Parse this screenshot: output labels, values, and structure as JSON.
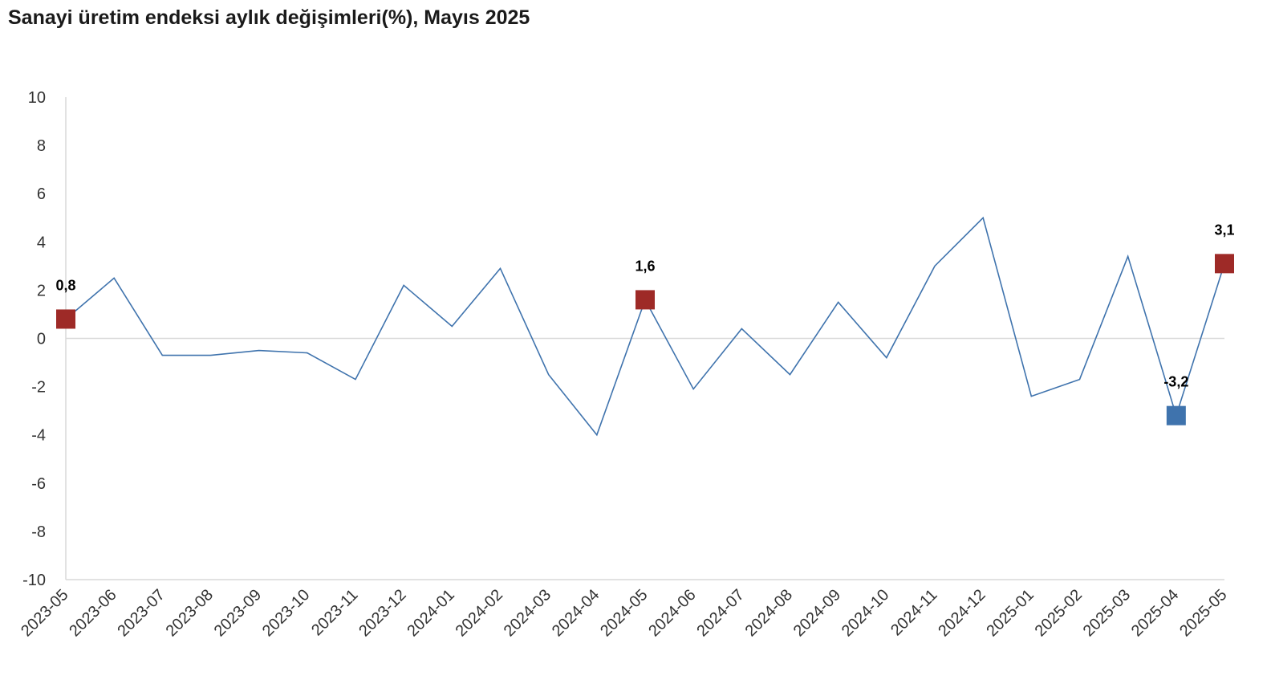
{
  "chart_data": {
    "type": "line",
    "title": "Sanayi üretim endeksi aylık değişimleri(%), Mayıs 2025",
    "xlabel": "",
    "ylabel": "",
    "categories": [
      "2023-05",
      "2023-06",
      "2023-07",
      "2023-08",
      "2023-09",
      "2023-10",
      "2023-11",
      "2023-12",
      "2024-01",
      "2024-02",
      "2024-03",
      "2024-04",
      "2024-05",
      "2024-06",
      "2024-07",
      "2024-08",
      "2024-09",
      "2024-10",
      "2024-11",
      "2024-12",
      "2025-01",
      "2025-02",
      "2025-03",
      "2025-04",
      "2025-05"
    ],
    "series": [
      {
        "values": [
          0.8,
          2.5,
          -0.7,
          -0.7,
          -0.5,
          -0.6,
          -1.7,
          2.2,
          0.5,
          2.9,
          -1.5,
          -4.0,
          1.6,
          -2.1,
          0.4,
          -1.5,
          1.5,
          -0.8,
          3.0,
          5.0,
          -2.4,
          -1.7,
          3.4,
          -3.2,
          3.1
        ],
        "color": "#3f73ad"
      }
    ],
    "ylim": [
      -10,
      10
    ],
    "yticks": [
      "10",
      "8",
      "6",
      "4",
      "2",
      "0",
      "-2",
      "-4",
      "-6",
      "-8",
      "-10"
    ],
    "grid": false,
    "zero_line": true,
    "legend": "none",
    "highlighted_points": [
      {
        "category": "2023-05",
        "value": 0.8,
        "label": "0,8",
        "color": "#9e2a27"
      },
      {
        "category": "2024-05",
        "value": 1.6,
        "label": "1,6",
        "color": "#9e2a27"
      },
      {
        "category": "2025-04",
        "value": -3.2,
        "label": "-3,2",
        "color": "#3f73ad"
      },
      {
        "category": "2025-05",
        "value": 3.1,
        "label": "3,1",
        "color": "#9e2a27"
      }
    ],
    "colors": {
      "line": "#3f73ad",
      "axis": "#d9d9d9",
      "text": "#333333"
    }
  }
}
